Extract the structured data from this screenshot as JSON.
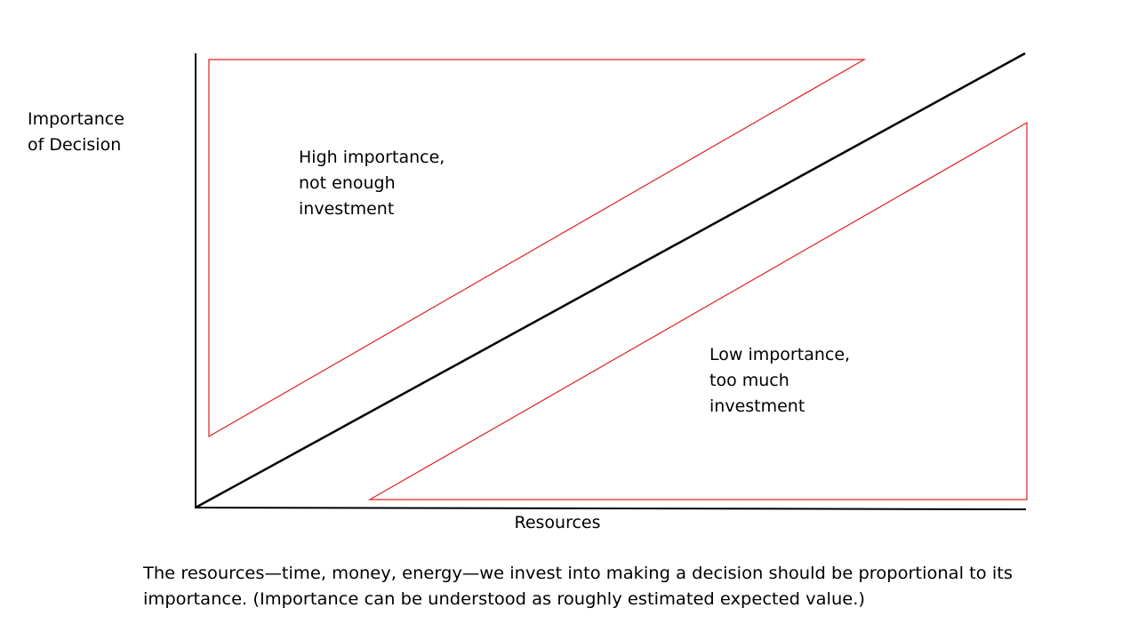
{
  "y_axis_label": [
    "Importance",
    "of Decision"
  ],
  "x_axis_label": "Resources",
  "regions": [
    {
      "label": [
        "High importance,",
        "not enough",
        "investment"
      ]
    },
    {
      "label": [
        "Low importance,",
        "too much",
        "investment"
      ]
    }
  ],
  "caption": [
    "The resources—time, money, energy—we invest into making a decision should be proportional to its",
    "importance.  (Importance can be understood as roughly estimated expected value.)"
  ]
}
